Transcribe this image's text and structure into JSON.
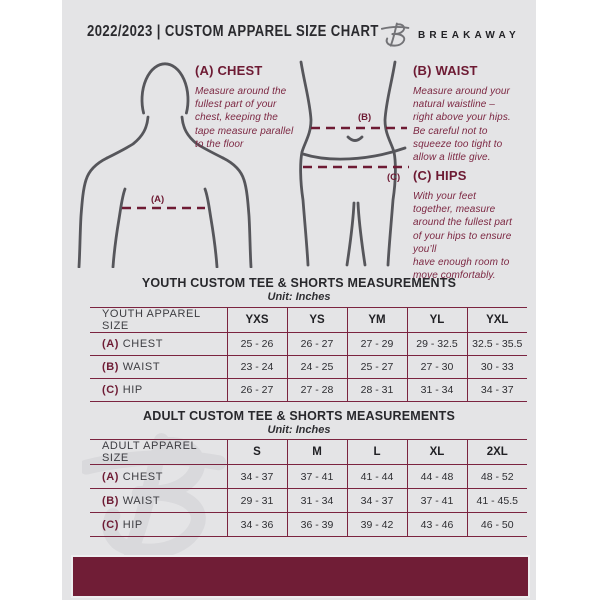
{
  "header": {
    "title": "2022/2023  |  CUSTOM APPAREL SIZE CHART",
    "brand": "BREAKAWAY"
  },
  "diagram": {
    "chest": {
      "heading": "(A) CHEST",
      "marker": "(A)",
      "description": "Measure around the\nfullest part of your\nchest, keeping the\ntape measure parallel\nto the floor"
    },
    "waist": {
      "heading": "(B) WAIST",
      "marker": "(B)",
      "description": "Measure around your\nnatural waistline –\nright above your hips.\nBe careful not to\nsqueeze too tight to\nallow a little give."
    },
    "hips": {
      "heading": "(C) HIPS",
      "marker": "(C)",
      "description": "With your feet\ntogether, measure\naround the fullest part\nof your hips to ensure\nyou’ll\nhave enough room to\nmove comfortably."
    }
  },
  "youth_table": {
    "title": "YOUTH CUSTOM TEE & SHORTS MEASUREMENTS",
    "unit": "Unit: Inches",
    "header": [
      "YOUTH APPAREL SIZE",
      "YXS",
      "YS",
      "YM",
      "YL",
      "YXL"
    ],
    "rows": [
      {
        "prefix": "(A)",
        "label": "CHEST",
        "values": [
          "25 - 26",
          "26 - 27",
          "27 - 29",
          "29 - 32.5",
          "32.5 - 35.5"
        ]
      },
      {
        "prefix": "(B)",
        "label": "WAIST",
        "values": [
          "23 - 24",
          "24 - 25",
          "25 - 27",
          "27 - 30",
          "30 - 33"
        ]
      },
      {
        "prefix": "(C)",
        "label": "HIP",
        "values": [
          "26 - 27",
          "27 - 28",
          "28 - 31",
          "31 - 34",
          "34 - 37"
        ]
      }
    ]
  },
  "adult_table": {
    "title": "ADULT CUSTOM TEE & SHORTS MEASUREMENTS",
    "unit": "Unit: Inches",
    "header": [
      "ADULT APPAREL SIZE",
      "S",
      "M",
      "L",
      "XL",
      "2XL"
    ],
    "rows": [
      {
        "prefix": "(A)",
        "label": "CHEST",
        "values": [
          "34 - 37",
          "37 - 41",
          "41 - 44",
          "44 - 48",
          "48 - 52"
        ]
      },
      {
        "prefix": "(B)",
        "label": "WAIST",
        "values": [
          "29 - 31",
          "31 - 34",
          "34 - 37",
          "37 - 41",
          "41 - 45.5"
        ]
      },
      {
        "prefix": "(C)",
        "label": "HIP",
        "values": [
          "34 - 36",
          "36 - 39",
          "39 - 42",
          "43 - 46",
          "46 - 50"
        ]
      }
    ]
  },
  "colors": {
    "maroon": "#701d36",
    "flyer_background": "#e4e4e6",
    "text_dark": "#2a2a2e",
    "description_maroon": "#7c2742"
  }
}
